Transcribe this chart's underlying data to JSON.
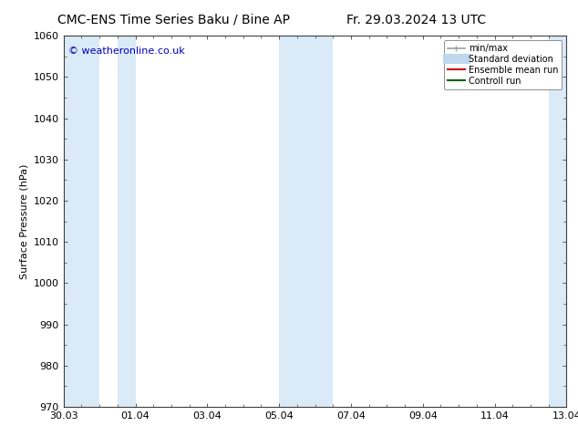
{
  "title_left": "CMC-ENS Time Series Baku / Bine AP",
  "title_right": "Fr. 29.03.2024 13 UTC",
  "ylabel": "Surface Pressure (hPa)",
  "copyright_text": "© weatheronline.co.uk",
  "ylim": [
    970,
    1060
  ],
  "yticks": [
    970,
    980,
    990,
    1000,
    1010,
    1020,
    1030,
    1040,
    1050,
    1060
  ],
  "xtick_labels": [
    "30.03",
    "01.04",
    "03.04",
    "05.04",
    "07.04",
    "09.04",
    "11.04",
    "13.04"
  ],
  "xtick_positions": [
    0,
    2,
    4,
    6,
    8,
    10,
    12,
    14
  ],
  "x_total_days": 14,
  "shaded_bands": [
    {
      "x_start": 0.0,
      "x_end": 1.0
    },
    {
      "x_start": 1.5,
      "x_end": 2.0
    },
    {
      "x_start": 6.0,
      "x_end": 7.5
    },
    {
      "x_start": 13.5,
      "x_end": 14.0
    }
  ],
  "shaded_color": "#daeaf7",
  "background_color": "#ffffff",
  "legend_items": [
    {
      "label": "min/max",
      "color": "#a0a0a0",
      "lw": 1.2,
      "style": "minmax"
    },
    {
      "label": "Standard deviation",
      "color": "#c0d8ee",
      "lw": 8,
      "style": "line"
    },
    {
      "label": "Ensemble mean run",
      "color": "#cc0000",
      "lw": 1.5,
      "style": "line"
    },
    {
      "label": "Controll run",
      "color": "#006600",
      "lw": 1.5,
      "style": "line"
    }
  ],
  "title_fontsize": 10,
  "axis_label_fontsize": 8,
  "tick_fontsize": 8,
  "copyright_color": "#0000bb",
  "copyright_fontsize": 8,
  "border_color": "#404040",
  "spine_color": "#404040"
}
